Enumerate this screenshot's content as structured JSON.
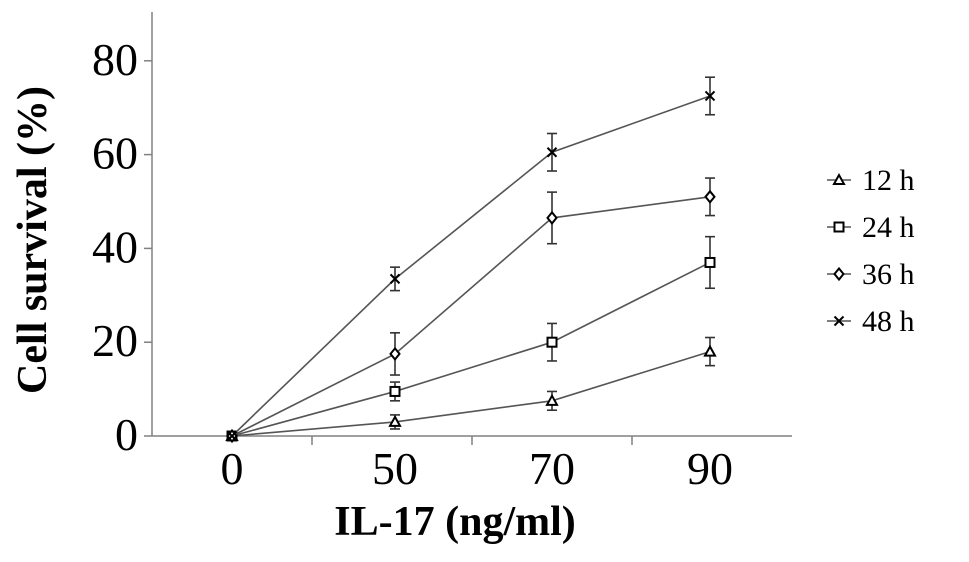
{
  "chart_data": {
    "type": "line",
    "title": "",
    "xlabel": "IL-17 (ng/ml)",
    "ylabel": "Cell survival (%)",
    "categories": [
      "0",
      "50",
      "70",
      "90"
    ],
    "ylim": [
      0,
      85
    ],
    "yticks": [
      0,
      20,
      40,
      60,
      80
    ],
    "grid": false,
    "legend": "right",
    "series": [
      {
        "name": "12 h",
        "marker": "triangle",
        "values": [
          0,
          3,
          7.5,
          18
        ],
        "errors": [
          0,
          1.5,
          2,
          3
        ]
      },
      {
        "name": "24 h",
        "marker": "square",
        "values": [
          0,
          9.5,
          20,
          37
        ],
        "errors": [
          0,
          2,
          4,
          5.5
        ]
      },
      {
        "name": "36 h",
        "marker": "diamond",
        "values": [
          0,
          17.5,
          46.5,
          51
        ],
        "errors": [
          0,
          4.5,
          5.5,
          4
        ]
      },
      {
        "name": "48 h",
        "marker": "cross",
        "values": [
          0,
          33.5,
          60.5,
          72.5
        ],
        "errors": [
          0,
          2.5,
          4,
          4
        ]
      }
    ]
  }
}
